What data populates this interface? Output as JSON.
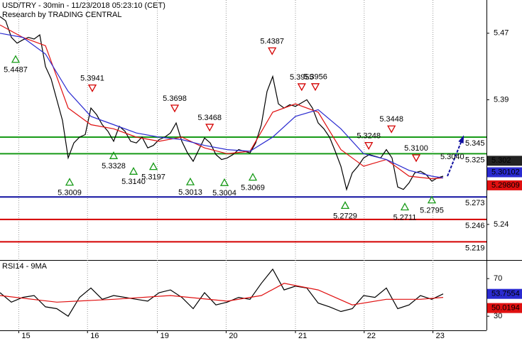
{
  "chart_data": {
    "type": "line",
    "title": "USD/TRY - 30min - 11/23/2018 05:23:10 (CET)",
    "subtitle": "Research by TRADING CENTRAL",
    "xlim": [
      0,
      85.625
    ],
    "xticks": [
      {
        "value": 3.3,
        "label": "15"
      },
      {
        "value": 15.4,
        "label": "16"
      },
      {
        "value": 27.7,
        "label": "19"
      },
      {
        "value": 39.8,
        "label": "20"
      },
      {
        "value": 52,
        "label": "21"
      },
      {
        "value": 64.1,
        "label": "22"
      },
      {
        "value": 76.2,
        "label": "23"
      }
    ],
    "ylim": [
      5.198,
      5.51
    ],
    "yticks": [
      5.24,
      5.39,
      5.47
    ],
    "series": [
      {
        "color": "#000000",
        "values": [
          5.49,
          5.485,
          5.465,
          5.458,
          5.462,
          5.465,
          5.463,
          5.468,
          5.43,
          5.415,
          5.39,
          5.365,
          5.32,
          5.338,
          5.345,
          5.348,
          5.38,
          5.372,
          5.36,
          5.352,
          5.34,
          5.358,
          5.352,
          5.34,
          5.338,
          5.345,
          5.332,
          5.335,
          5.342,
          5.345,
          5.35,
          5.362,
          5.34,
          5.326,
          5.316,
          5.33,
          5.344,
          5.338,
          5.324,
          5.318,
          5.32,
          5.324,
          5.33,
          5.328,
          5.326,
          5.338,
          5.36,
          5.4,
          5.418,
          5.385,
          5.38,
          5.384,
          5.382,
          5.386,
          5.39,
          5.38,
          5.362,
          5.355,
          5.345,
          5.328,
          5.31,
          5.282,
          5.302,
          5.31,
          5.32,
          5.324,
          5.322,
          5.32,
          5.33,
          5.32,
          5.285,
          5.282,
          5.29,
          5.302,
          5.304,
          5.3,
          5.292,
          5.296,
          5.298
        ]
      },
      {
        "color": "#e01010",
        "x": [
          0,
          4,
          8,
          12,
          16,
          20,
          24,
          28,
          32,
          36,
          40,
          44,
          48,
          52,
          56,
          60,
          64,
          68,
          72,
          76,
          78
        ],
        "values": [
          5.48,
          5.465,
          5.455,
          5.38,
          5.36,
          5.355,
          5.345,
          5.34,
          5.345,
          5.332,
          5.325,
          5.328,
          5.375,
          5.385,
          5.375,
          5.33,
          5.31,
          5.318,
          5.298,
          5.295,
          5.296
        ]
      },
      {
        "color": "#2a2ad0",
        "x": [
          0,
          4,
          8,
          12,
          16,
          20,
          24,
          28,
          32,
          36,
          40,
          44,
          48,
          52,
          56,
          60,
          64,
          68,
          72,
          76,
          78
        ],
        "values": [
          5.47,
          5.465,
          5.445,
          5.4,
          5.37,
          5.36,
          5.35,
          5.345,
          5.342,
          5.335,
          5.33,
          5.328,
          5.345,
          5.37,
          5.378,
          5.355,
          5.325,
          5.318,
          5.305,
          5.298,
          5.296
        ]
      }
    ],
    "levels": [
      {
        "value": 5.345,
        "color": "#179a17"
      },
      {
        "value": 5.325,
        "color": "#179a17"
      },
      {
        "value": 5.273,
        "color": "#1010a0"
      },
      {
        "value": 5.246,
        "color": "#d40000"
      },
      {
        "value": 5.219,
        "color": "#d40000"
      }
    ],
    "last_values": [
      {
        "value": 5.302,
        "color": "#222222"
      },
      {
        "value": 5.30102,
        "color": "#2a2ad0"
      },
      {
        "value": 5.29809,
        "color": "#e01010"
      }
    ],
    "forecast": {
      "color": "#1010a0",
      "x": [
        78.75,
        81.5
      ],
      "values": [
        5.298,
        5.345
      ]
    },
    "annotations": [
      {
        "kind": "low",
        "x": 2.75,
        "value": 5.4487
      },
      {
        "kind": "low",
        "x": 12.25,
        "value": 5.3009
      },
      {
        "kind": "low",
        "x": 20,
        "value": 5.3328
      },
      {
        "kind": "low",
        "x": 23.5,
        "value": 5.314,
        "label": "5.3140"
      },
      {
        "kind": "low",
        "x": 27,
        "value": 5.3197
      },
      {
        "kind": "low",
        "x": 33.5,
        "value": 5.3013
      },
      {
        "kind": "low",
        "x": 39.5,
        "value": 5.3004
      },
      {
        "kind": "low",
        "x": 44.5,
        "value": 5.3069
      },
      {
        "kind": "low",
        "x": 60.75,
        "value": 5.2729
      },
      {
        "kind": "low",
        "x": 71.25,
        "value": 5.2711
      },
      {
        "kind": "low",
        "x": 76,
        "value": 5.2795
      },
      {
        "kind": "high",
        "x": 16.25,
        "value": 5.3941
      },
      {
        "kind": "high",
        "x": 30.75,
        "value": 5.3698
      },
      {
        "kind": "high",
        "x": 36.9,
        "value": 5.3468
      },
      {
        "kind": "high",
        "x": 47.9,
        "value": 5.4387
      },
      {
        "kind": "high",
        "x": 53.1,
        "value": 5.3955
      },
      {
        "kind": "high",
        "x": 55.5,
        "value": 5.3956
      },
      {
        "kind": "high",
        "x": 64.9,
        "value": 5.3248
      },
      {
        "kind": "high",
        "x": 68.9,
        "value": 5.3448
      },
      {
        "kind": "high",
        "x": 73.25,
        "value": 5.31,
        "label": "5.3100"
      },
      {
        "kind": "note",
        "x": 79.6,
        "value": 5.304,
        "label": "5.3040"
      }
    ],
    "rsi": {
      "title": "RSI14 - 9MA",
      "ylim": [
        15,
        89
      ],
      "yticks": [
        30,
        70
      ],
      "series": [
        {
          "color": "#000000",
          "x": [
            0,
            2,
            4,
            6,
            8,
            10,
            12,
            14,
            16,
            18,
            20,
            22,
            24,
            26,
            28,
            30,
            32,
            34,
            36,
            38,
            40,
            42,
            44,
            46,
            48,
            50,
            52,
            54,
            56,
            58,
            60,
            62,
            64,
            66,
            68,
            70,
            72,
            74,
            76,
            78
          ],
          "values": [
            55,
            45,
            50,
            52,
            40,
            38,
            30,
            50,
            60,
            48,
            52,
            50,
            48,
            46,
            55,
            58,
            50,
            38,
            55,
            42,
            45,
            50,
            48,
            65,
            80,
            58,
            62,
            60,
            44,
            40,
            35,
            38,
            52,
            50,
            60,
            38,
            42,
            52,
            48,
            53.7554
          ]
        },
        {
          "color": "#e01010",
          "x": [
            0,
            10,
            20,
            30,
            40,
            46,
            50,
            56,
            62,
            68,
            74,
            78
          ],
          "values": [
            52,
            45,
            48,
            52,
            46,
            52,
            65,
            58,
            42,
            48,
            48,
            50.0194
          ]
        }
      ],
      "last_values": [
        {
          "value": 53.7554,
          "color": "#2a2ad0"
        },
        {
          "value": 50.0194,
          "color": "#e01010"
        }
      ]
    }
  }
}
